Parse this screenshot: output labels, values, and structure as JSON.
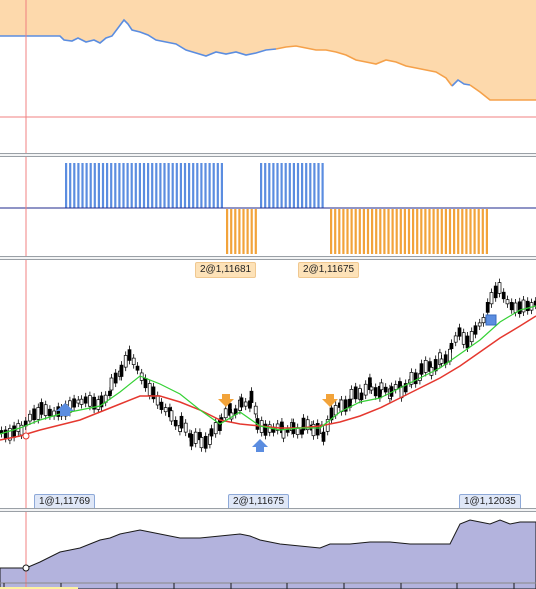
{
  "colors": {
    "equity_fill": "#fdd9ac",
    "equity_line": "#f5a14a",
    "equity_line_alt": "#5b8de0",
    "bar_up": "#5b8de0",
    "bar_down": "#f2a33a",
    "mid_line": "#1f2a8c",
    "ref_line": "#f08080",
    "candle_body": "#000000",
    "ma_fast": "#35d135",
    "ma_slow": "#e5382f",
    "volume_fill": "#b3b3dd",
    "volume_line": "#1a1a1a",
    "cursor_line": "#f08080"
  },
  "position_pane": {
    "blue_bar_groups": [
      {
        "from": 65,
        "to": 222
      },
      {
        "from": 260,
        "to": 325
      }
    ],
    "orange_bar_groups": [
      {
        "from": 226,
        "to": 256
      },
      {
        "from": 330,
        "to": 487
      }
    ]
  },
  "signal_tags_top": [
    {
      "label": "2@1,11681",
      "kind": "sell"
    },
    {
      "label": "2@1,11675",
      "kind": "sell"
    }
  ],
  "signal_tags_bottom": [
    {
      "label": "1@1,11769",
      "kind": "buy"
    },
    {
      "label": "2@1,11675",
      "kind": "buy"
    },
    {
      "label": "1@1,12035",
      "kind": "buy"
    }
  ],
  "trade_markers": [
    {
      "type": "buy-arrow",
      "direction": "up"
    },
    {
      "type": "sell-arrow",
      "direction": "down"
    },
    {
      "type": "buy-arrow",
      "direction": "up"
    },
    {
      "type": "sell-arrow",
      "direction": "down"
    },
    {
      "type": "exit-square",
      "direction": "none"
    }
  ]
}
